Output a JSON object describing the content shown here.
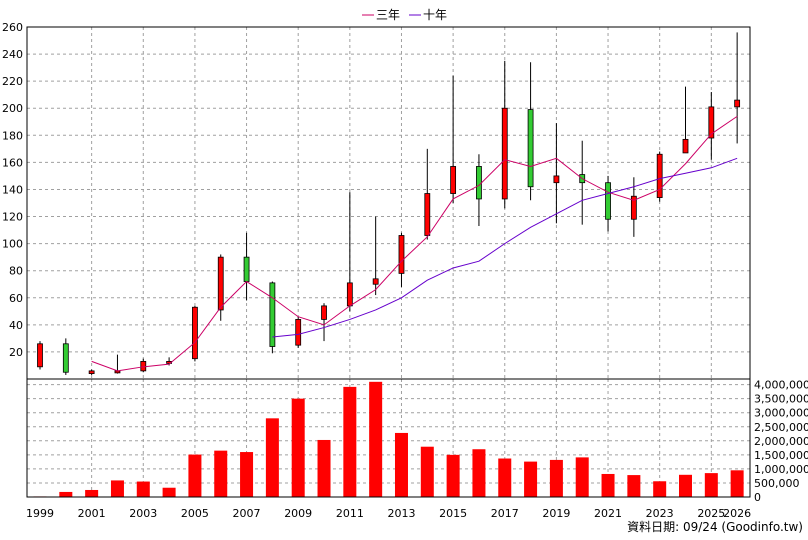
{
  "legend": [
    {
      "name": "三年",
      "color": "#cc0066"
    },
    {
      "name": "十年",
      "color": "#6600cc"
    }
  ],
  "credit": "資料日期: 09/24 (Goodinfo.tw)",
  "colors": {
    "up": "#ff0000",
    "down": "#33cc33",
    "volume": "#ff0000",
    "wick": "#000000"
  },
  "chart_data": [
    {
      "type": "candlestick",
      "title": "",
      "x_tick_labels": [
        "1999",
        "2001",
        "2003",
        "2005",
        "2007",
        "2009",
        "2011",
        "2013",
        "2015",
        "2017",
        "2019",
        "2021",
        "2023",
        "2025",
        "2026"
      ],
      "y_ticks": [
        20,
        40,
        60,
        80,
        100,
        120,
        140,
        160,
        180,
        200,
        220,
        240,
        260
      ],
      "ylim": [
        0,
        260
      ],
      "grid": true,
      "legend_position": "top-center",
      "candles": [
        {
          "year": 1999,
          "open": 9,
          "high": 28,
          "low": 7,
          "close": 26
        },
        {
          "year": 2000,
          "open": 26,
          "high": 30,
          "low": 3,
          "close": 5
        },
        {
          "year": 2001,
          "open": 4,
          "high": 7,
          "low": 3,
          "close": 6
        },
        {
          "year": 2002,
          "open": 5,
          "high": 18,
          "low": 4,
          "close": 6
        },
        {
          "year": 2003,
          "open": 6,
          "high": 15,
          "low": 5,
          "close": 13
        },
        {
          "year": 2004,
          "open": 12,
          "high": 16,
          "low": 10,
          "close": 13
        },
        {
          "year": 2005,
          "open": 15,
          "high": 54,
          "low": 13,
          "close": 53
        },
        {
          "year": 2006,
          "open": 51,
          "high": 92,
          "low": 43,
          "close": 90
        },
        {
          "year": 2007,
          "open": 90,
          "high": 108,
          "low": 58,
          "close": 72
        },
        {
          "year": 2008,
          "open": 71,
          "high": 72,
          "low": 19,
          "close": 24
        },
        {
          "year": 2009,
          "open": 25,
          "high": 46,
          "low": 23,
          "close": 44
        },
        {
          "year": 2010,
          "open": 44,
          "high": 56,
          "low": 28,
          "close": 54
        },
        {
          "year": 2011,
          "open": 54,
          "high": 138,
          "low": 50,
          "close": 71
        },
        {
          "year": 2012,
          "open": 70,
          "high": 120,
          "low": 62,
          "close": 74
        },
        {
          "year": 2013,
          "open": 78,
          "high": 108,
          "low": 68,
          "close": 106
        },
        {
          "year": 2014,
          "open": 106,
          "high": 170,
          "low": 103,
          "close": 137
        },
        {
          "year": 2015,
          "open": 137,
          "high": 224,
          "low": 130,
          "close": 157
        },
        {
          "year": 2016,
          "open": 157,
          "high": 166,
          "low": 113,
          "close": 133
        },
        {
          "year": 2017,
          "open": 133,
          "high": 235,
          "low": 126,
          "close": 200
        },
        {
          "year": 2018,
          "open": 199,
          "high": 234,
          "low": 132,
          "close": 142
        },
        {
          "year": 2019,
          "open": 145,
          "high": 189,
          "low": 115,
          "close": 150
        },
        {
          "year": 2020,
          "open": 151,
          "high": 176,
          "low": 114,
          "close": 145
        },
        {
          "year": 2021,
          "open": 145,
          "high": 150,
          "low": 109,
          "close": 118
        },
        {
          "year": 2022,
          "open": 118,
          "high": 149,
          "low": 105,
          "close": 135
        },
        {
          "year": 2023,
          "open": 134,
          "high": 168,
          "low": 131,
          "close": 166
        },
        {
          "year": 2024,
          "open": 167,
          "high": 216,
          "low": 167,
          "close": 177
        },
        {
          "year": 2025,
          "open": 178,
          "high": 212,
          "low": 162,
          "close": 201
        },
        {
          "year": 2026,
          "open": 201,
          "high": 256,
          "low": 174,
          "close": 206
        }
      ],
      "series": [
        {
          "name": "三年",
          "x": [
            2001,
            2002,
            2003,
            2004,
            2005,
            2006,
            2007,
            2008,
            2009,
            2010,
            2011,
            2012,
            2013,
            2014,
            2015,
            2016,
            2017,
            2018,
            2019,
            2020,
            2021,
            2022,
            2023,
            2024,
            2025,
            2026
          ],
          "values": [
            13,
            6,
            9,
            11,
            27,
            53,
            72,
            60,
            46,
            40,
            54,
            66,
            87,
            105,
            133,
            143,
            162,
            157,
            163,
            148,
            138,
            132,
            140,
            159,
            181,
            194
          ]
        },
        {
          "name": "十年",
          "x": [
            2008,
            2009,
            2010,
            2011,
            2012,
            2013,
            2014,
            2015,
            2016,
            2017,
            2018,
            2019,
            2020,
            2021,
            2022,
            2023,
            2024,
            2025,
            2026
          ],
          "values": [
            31,
            33,
            38,
            44,
            51,
            60,
            73,
            82,
            87,
            100,
            112,
            122,
            132,
            137,
            142,
            148,
            152,
            156,
            163
          ]
        }
      ]
    },
    {
      "type": "bar",
      "title": "",
      "categories": [
        1999,
        2000,
        2001,
        2002,
        2003,
        2004,
        2005,
        2006,
        2007,
        2008,
        2009,
        2010,
        2011,
        2012,
        2013,
        2014,
        2015,
        2016,
        2017,
        2018,
        2019,
        2020,
        2021,
        2022,
        2023,
        2024,
        2025,
        2026
      ],
      "values": [
        20000,
        180000,
        250000,
        590000,
        550000,
        330000,
        1510000,
        1650000,
        1600000,
        2800000,
        3500000,
        2030000,
        3920000,
        4100000,
        2280000,
        1790000,
        1500000,
        1700000,
        1370000,
        1260000,
        1320000,
        1410000,
        820000,
        780000,
        560000,
        790000,
        850000,
        950000
      ],
      "y_tick_labels": [
        "0",
        "500,000",
        "1,000,000",
        "1,500,000",
        "2,000,000",
        "2,500,000",
        "3,000,000",
        "3,500,000",
        "4,000,000"
      ],
      "y_ticks": [
        0,
        500000,
        1000000,
        1500000,
        2000000,
        2500000,
        3000000,
        3500000,
        4000000
      ],
      "ylim": [
        0,
        4200000
      ],
      "grid": true
    }
  ]
}
